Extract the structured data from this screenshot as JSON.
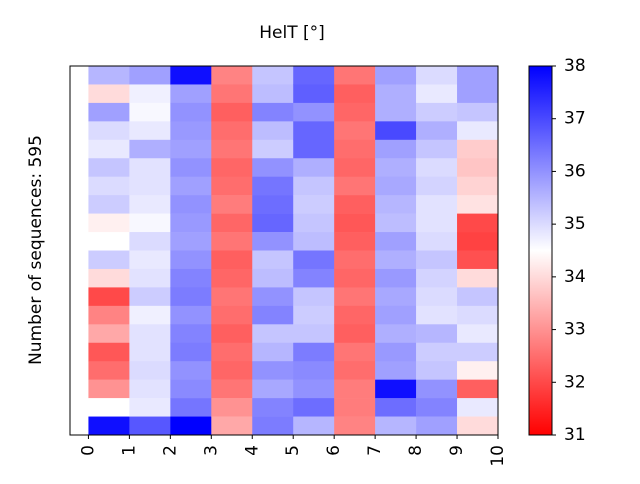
{
  "chart_data": {
    "type": "heatmap",
    "title": "HelT [°]",
    "y_label": "Number of sequences: 595",
    "xlim": [
      -0.45,
      10
    ],
    "xticks": [
      0,
      1,
      2,
      3,
      4,
      5,
      6,
      7,
      8,
      9,
      10
    ],
    "colormap": [
      "#ff0000",
      "#ffffff",
      "#0000ff"
    ],
    "zlim": [
      31,
      38
    ],
    "zticks": [
      31,
      32,
      33,
      34,
      35,
      36,
      37,
      38
    ],
    "z": [
      [
        35.5,
        34.0,
        35.8,
        35.0,
        34.8,
        35.3,
        35.0,
        35.2,
        34.3,
        34.5,
        35.2,
        34.0,
        32.0,
        32.8,
        33.3,
        32.2,
        32.5,
        33.0,
        34.5,
        37.8
      ],
      [
        35.8,
        34.7,
        34.6,
        34.8,
        35.6,
        34.9,
        34.9,
        34.8,
        34.6,
        35.0,
        34.8,
        34.9,
        35.2,
        34.7,
        34.9,
        34.9,
        35.0,
        34.9,
        34.8,
        36.8
      ],
      [
        37.8,
        35.8,
        36.0,
        35.9,
        35.8,
        36.0,
        35.8,
        36.0,
        35.9,
        35.8,
        36.0,
        36.2,
        36.3,
        36.0,
        36.2,
        36.3,
        36.0,
        36.1,
        36.4,
        38.0
      ],
      [
        32.8,
        32.6,
        32.3,
        32.5,
        32.6,
        32.4,
        32.5,
        32.7,
        32.4,
        32.6,
        32.3,
        32.4,
        32.6,
        32.5,
        32.3,
        32.5,
        32.4,
        32.6,
        33.0,
        33.3
      ],
      [
        35.3,
        35.4,
        36.2,
        35.4,
        35.2,
        36.0,
        36.4,
        36.5,
        36.6,
        36.0,
        35.3,
        35.4,
        36.0,
        36.2,
        35.3,
        35.5,
        36.0,
        35.7,
        36.2,
        36.3
      ],
      [
        36.6,
        36.7,
        36.0,
        36.6,
        36.6,
        35.6,
        35.3,
        35.2,
        35.3,
        35.4,
        36.4,
        36.2,
        35.3,
        35.2,
        35.3,
        36.3,
        36.1,
        36.0,
        36.5,
        35.5
      ],
      [
        32.6,
        32.3,
        32.4,
        32.6,
        32.5,
        32.4,
        32.6,
        32.3,
        32.2,
        32.3,
        32.5,
        32.4,
        32.6,
        32.4,
        32.3,
        32.6,
        32.5,
        32.7,
        32.7,
        32.8
      ],
      [
        35.8,
        35.6,
        35.6,
        37.0,
        35.8,
        35.6,
        35.7,
        35.5,
        35.4,
        35.8,
        35.6,
        35.9,
        35.7,
        35.8,
        35.6,
        35.9,
        35.8,
        37.8,
        36.5,
        35.5
      ],
      [
        35.0,
        34.8,
        35.2,
        35.6,
        35.3,
        35.0,
        35.1,
        34.9,
        34.9,
        35.0,
        35.3,
        35.1,
        35.0,
        34.9,
        35.5,
        35.2,
        35.3,
        36.0,
        36.2,
        35.8
      ],
      [
        35.8,
        35.8,
        35.3,
        34.8,
        33.8,
        33.7,
        33.9,
        34.1,
        32.0,
        31.9,
        32.1,
        34.0,
        35.3,
        35.0,
        34.8,
        35.2,
        34.3,
        32.3,
        34.8,
        34.0
      ]
    ]
  }
}
